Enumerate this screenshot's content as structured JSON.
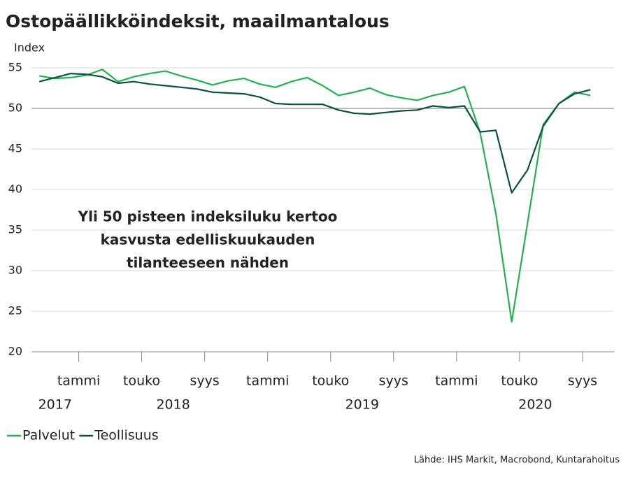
{
  "chart_data": {
    "type": "line",
    "title": "Ostopäällikköindeksit, maailmantalous",
    "y_axis_label": "Index",
    "annotation": [
      "Yli 50 pisteen indeksiluku kertoo",
      "kasvusta edelliskuukauden",
      "tilanteeseen nähden"
    ],
    "source": "Lähde: IHS Markit, Macrobond, Kuntarahoitus",
    "x": [
      0,
      1,
      2,
      3,
      4,
      5,
      6,
      7,
      8,
      9,
      10,
      11,
      12,
      13,
      14,
      15,
      16,
      17,
      18,
      19,
      20,
      21,
      22,
      23,
      24,
      25,
      26,
      27,
      28,
      29,
      30,
      31,
      32,
      33,
      34,
      35
    ],
    "xlim": [
      -0.5,
      36.5
    ],
    "xticks": [
      {
        "value": 2.5,
        "label": "tammi"
      },
      {
        "value": 6.5,
        "label": "touko"
      },
      {
        "value": 10.5,
        "label": "syys"
      },
      {
        "value": 14.5,
        "label": "tammi"
      },
      {
        "value": 18.5,
        "label": "touko"
      },
      {
        "value": 22.5,
        "label": "syys"
      },
      {
        "value": 26.5,
        "label": "tammi"
      },
      {
        "value": 30.5,
        "label": "touko"
      },
      {
        "value": 34.5,
        "label": "syys"
      }
    ],
    "year_ticks": [
      {
        "value": 1,
        "label": "2017"
      },
      {
        "value": 8.5,
        "label": "2018"
      },
      {
        "value": 20.5,
        "label": "2019"
      },
      {
        "value": 31.5,
        "label": "2020"
      }
    ],
    "ylim": [
      20,
      56
    ],
    "yticks": [
      20,
      25,
      30,
      35,
      40,
      45,
      50,
      55
    ],
    "reference_line": 50,
    "grid": true,
    "legend": "bottom-left",
    "series": [
      {
        "name": "Palvelut",
        "color": "#22b24c",
        "values": [
          54.0,
          53.7,
          53.8,
          54.1,
          54.8,
          53.3,
          53.9,
          54.3,
          54.6,
          54.0,
          53.5,
          52.9,
          53.4,
          53.7,
          53.0,
          52.6,
          53.3,
          53.8,
          52.8,
          51.6,
          52.0,
          52.5,
          51.7,
          51.3,
          51.0,
          51.6,
          52.0,
          52.7,
          47.0,
          37.0,
          23.7,
          35.8,
          48.0,
          50.6,
          52.0,
          51.6
        ]
      },
      {
        "name": "Teollisuus",
        "color": "#0b4f45",
        "values": [
          53.3,
          53.8,
          54.3,
          54.2,
          53.9,
          53.1,
          53.3,
          53.0,
          52.8,
          52.6,
          52.4,
          52.0,
          51.9,
          51.8,
          51.4,
          50.6,
          50.5,
          50.5,
          50.5,
          49.8,
          49.4,
          49.3,
          49.5,
          49.7,
          49.8,
          50.3,
          50.1,
          50.3,
          47.1,
          47.3,
          39.6,
          42.4,
          47.8,
          50.6,
          51.8,
          52.3
        ]
      }
    ]
  }
}
